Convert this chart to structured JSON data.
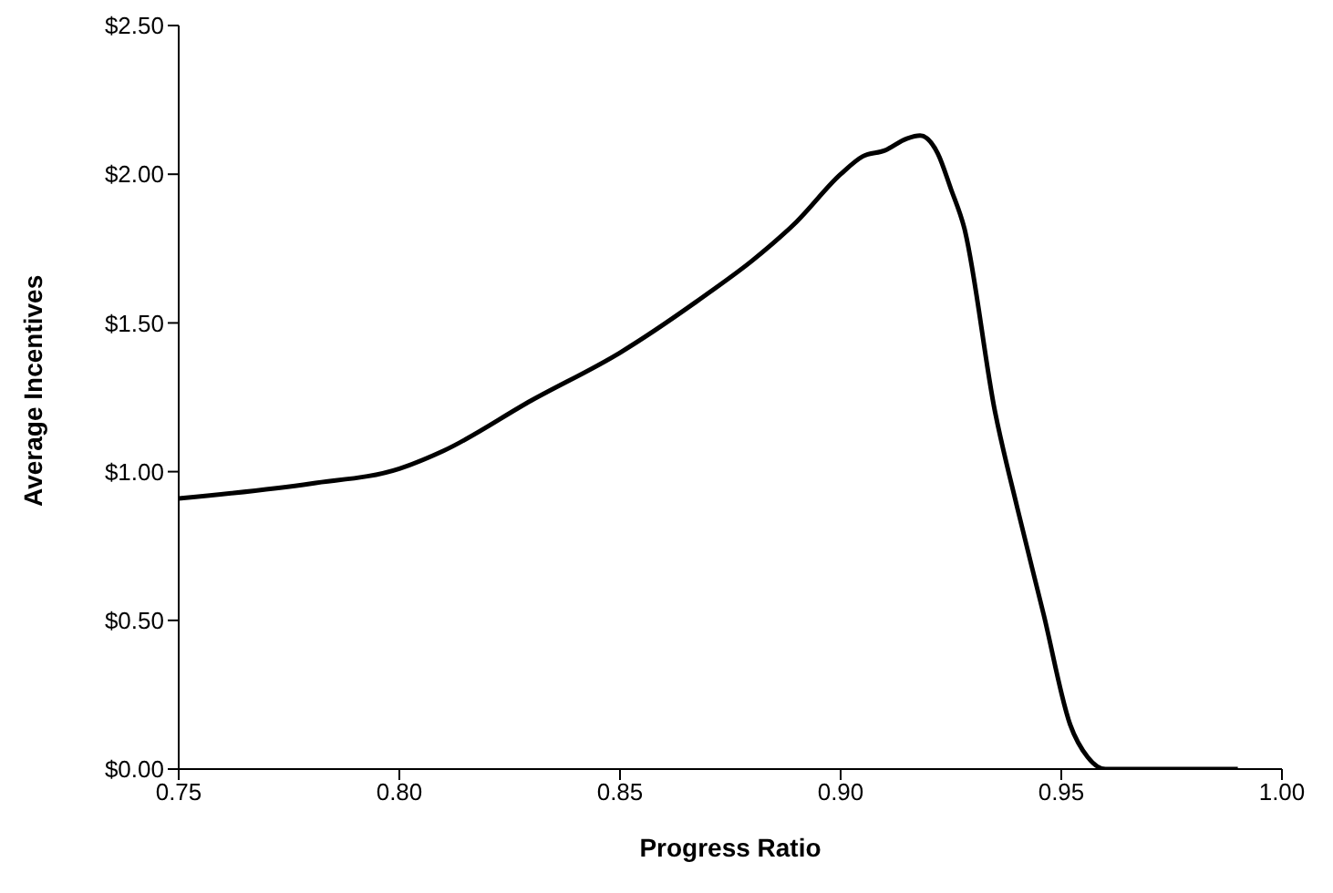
{
  "chart_data": {
    "type": "line",
    "xlabel": "Progress Ratio",
    "ylabel": "Average Incentives",
    "series": [
      {
        "color": "#000000",
        "x": [
          0.75,
          0.78,
          0.8,
          0.81,
          0.83,
          0.85,
          0.87,
          0.88,
          0.89,
          0.9,
          0.905,
          0.91,
          0.915,
          0.918,
          0.922,
          0.925,
          0.928,
          0.935,
          0.94,
          0.946,
          0.952,
          0.956,
          0.96,
          0.965,
          0.975,
          0.985,
          0.99
        ],
        "values": [
          0.91,
          0.96,
          1.01,
          1.07,
          1.24,
          1.4,
          1.6,
          1.71,
          1.84,
          2.0,
          2.06,
          2.08,
          2.12,
          2.13,
          2.07,
          1.95,
          1.82,
          1.2,
          0.88,
          0.52,
          0.15,
          0.04,
          0.0,
          0.0,
          0.0,
          0.0,
          0.0
        ]
      }
    ],
    "xlim": [
      0.75,
      1.0
    ],
    "xticks": [
      {
        "value": 0.75,
        "label": "0.75"
      },
      {
        "value": 0.8,
        "label": "0.80"
      },
      {
        "value": 0.85,
        "label": "0.85"
      },
      {
        "value": 0.9,
        "label": "0.90"
      },
      {
        "value": 0.95,
        "label": "0.95"
      },
      {
        "value": 1.0,
        "label": "1.00"
      }
    ],
    "ylim": [
      0,
      2.5
    ],
    "yticks": [
      {
        "value": 0,
        "label": "$0.00"
      },
      {
        "value": 0.5,
        "label": "$0.50"
      },
      {
        "value": 1,
        "label": "$1.00"
      },
      {
        "value": 1.5,
        "label": "$1.50"
      },
      {
        "value": 2,
        "label": "$2.00"
      },
      {
        "value": 2.5,
        "label": "$2.50"
      }
    ],
    "grid": false,
    "legend": false,
    "marker": "none",
    "line_style": "solid"
  }
}
